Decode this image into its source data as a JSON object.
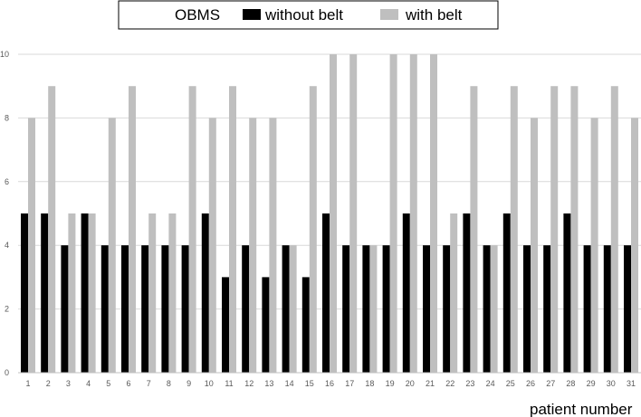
{
  "chart_data": {
    "type": "bar",
    "title": "OBMS",
    "xlabel": "patient number",
    "ylabel": "",
    "ylim": [
      0,
      10
    ],
    "yticks": [
      0,
      2,
      4,
      6,
      8,
      10
    ],
    "grid": true,
    "legend_position": "top",
    "categories": [
      "1",
      "2",
      "3",
      "4",
      "5",
      "6",
      "7",
      "8",
      "9",
      "10",
      "11",
      "12",
      "13",
      "14",
      "15",
      "16",
      "17",
      "18",
      "19",
      "20",
      "21",
      "22",
      "23",
      "24",
      "25",
      "26",
      "27",
      "28",
      "29",
      "30",
      "31"
    ],
    "series": [
      {
        "name": "without belt",
        "color": "#000000",
        "values": [
          5,
          5,
          4,
          5,
          4,
          4,
          4,
          4,
          4,
          5,
          3,
          4,
          3,
          4,
          3,
          5,
          4,
          4,
          4,
          5,
          4,
          4,
          5,
          4,
          5,
          4,
          4,
          5,
          4,
          4,
          4
        ]
      },
      {
        "name": "with belt",
        "color": "#bfbfbf",
        "values": [
          8,
          9,
          5,
          5,
          8,
          9,
          5,
          5,
          9,
          8,
          9,
          8,
          8,
          4,
          9,
          10,
          10,
          4,
          10,
          10,
          10,
          5,
          9,
          4,
          9,
          8,
          9,
          9,
          8,
          9,
          8
        ]
      }
    ]
  }
}
